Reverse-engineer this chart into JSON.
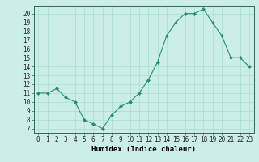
{
  "x": [
    0,
    1,
    2,
    3,
    4,
    5,
    6,
    7,
    8,
    9,
    10,
    11,
    12,
    13,
    14,
    15,
    16,
    17,
    18,
    19,
    20,
    21,
    22,
    23
  ],
  "y": [
    11,
    11,
    11.5,
    10.5,
    10,
    8,
    7.5,
    7,
    8.5,
    9.5,
    10,
    11,
    12.5,
    14.5,
    17.5,
    19,
    20,
    20,
    20.5,
    19,
    17.5,
    15,
    15,
    14
  ],
  "line_color": "#2d8b6f",
  "marker_color": "#2d8b6f",
  "bg_color": "#cceee8",
  "grid_color": "#aaddcc",
  "xlabel": "Humidex (Indice chaleur)",
  "xlim": [
    -0.5,
    23.5
  ],
  "ylim": [
    6.5,
    20.8
  ],
  "yticks": [
    7,
    8,
    9,
    10,
    11,
    12,
    13,
    14,
    15,
    16,
    17,
    18,
    19,
    20
  ],
  "xticks": [
    0,
    1,
    2,
    3,
    4,
    5,
    6,
    7,
    8,
    9,
    10,
    11,
    12,
    13,
    14,
    15,
    16,
    17,
    18,
    19,
    20,
    21,
    22,
    23
  ],
  "tick_fontsize": 5.5,
  "xlabel_fontsize": 6.5
}
